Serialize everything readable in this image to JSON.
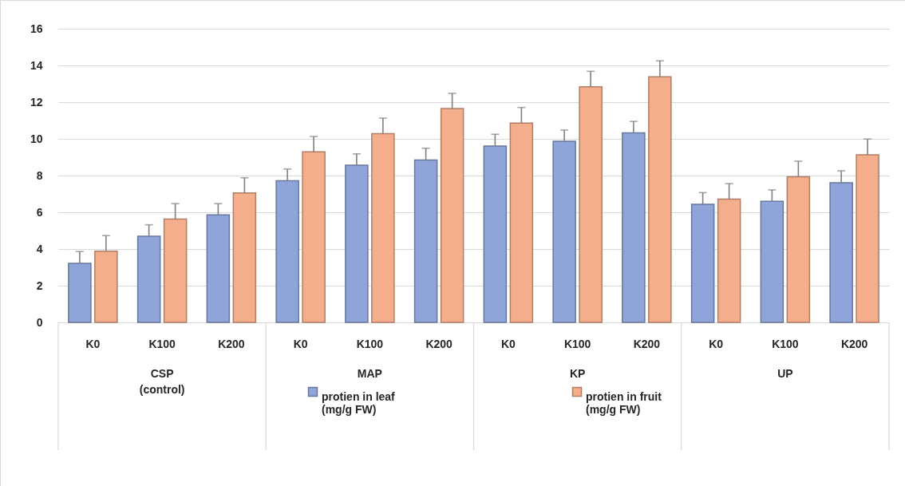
{
  "chart_data": {
    "type": "bar",
    "categories": [
      "K0",
      "K100",
      "K200",
      "K0",
      "K100",
      "K200",
      "K0",
      "K100",
      "K200",
      "K0",
      "K100",
      "K200"
    ],
    "annotations": [
      "CSP (control)",
      "MAP",
      "KP",
      "UP"
    ],
    "series": [
      {
        "name": "protien in leaf (mg/g FW)",
        "color": "#8fa5da",
        "values": [
          3.22,
          4.7,
          5.86,
          7.72,
          8.56,
          8.85,
          9.61,
          9.87,
          10.33,
          6.43,
          6.6,
          7.61
        ],
        "errors": [
          0.64,
          0.62,
          0.61,
          0.64,
          0.62,
          0.64,
          0.64,
          0.61,
          0.62,
          0.64,
          0.62,
          0.65
        ]
      },
      {
        "name": "protien in fruit (mg/g FW)",
        "color": "#f4ae8c",
        "values": [
          3.88,
          5.63,
          7.05,
          9.29,
          10.28,
          11.65,
          10.86,
          12.84,
          13.38,
          6.72,
          7.94,
          9.13
        ],
        "errors": [
          0.85,
          0.84,
          0.83,
          0.84,
          0.85,
          0.83,
          0.85,
          0.84,
          0.87,
          0.84,
          0.84,
          0.86
        ]
      }
    ],
    "ylim": [
      0,
      16
    ],
    "yticks": [
      0,
      2,
      4,
      6,
      8,
      10,
      12,
      14,
      16
    ],
    "grid": "y",
    "legend": "bottom"
  }
}
